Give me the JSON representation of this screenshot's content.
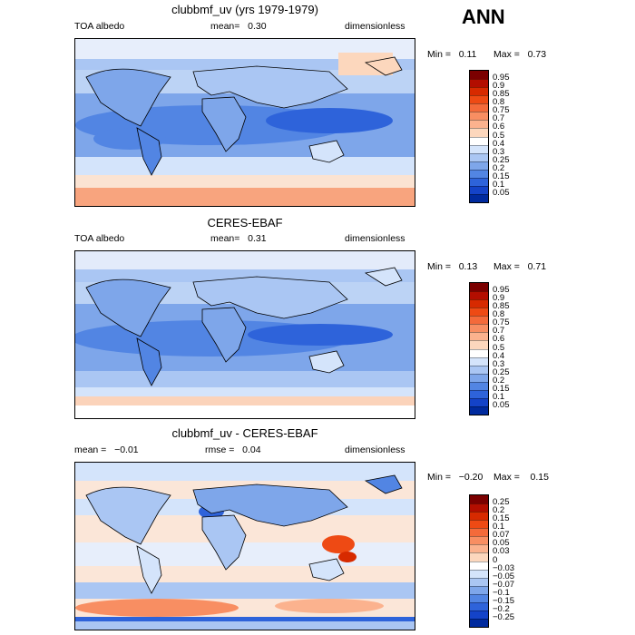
{
  "season": "ANN",
  "panels": [
    {
      "title": "clubbmf_uv (yrs 1979-1979)",
      "left_label": "TOA albedo",
      "mid_label": "mean=   0.30",
      "right_label": "dimensionless",
      "min_label": "Min =   0.11",
      "max_label": "Max =   0.73",
      "colorbar": {
        "ticks": [
          "0.95",
          "0.9",
          "0.85",
          "0.8",
          "0.75",
          "0.7",
          "0.6",
          "0.5",
          "0.4",
          "0.3",
          "0.25",
          "0.2",
          "0.15",
          "0.1",
          "0.05"
        ],
        "colors": [
          "#7b0000",
          "#b30e00",
          "#d72a00",
          "#ee4a14",
          "#f46a3a",
          "#f88e62",
          "#fbb28e",
          "#fcd7bd",
          "#ffffff",
          "#d4e4fb",
          "#aac6f3",
          "#7ea6ea",
          "#5285e3",
          "#2e63da",
          "#1443c8",
          "#002a9e"
        ]
      }
    },
    {
      "title": "CERES-EBAF",
      "left_label": "TOA albedo",
      "mid_label": "mean=   0.31",
      "right_label": "dimensionless",
      "min_label": "Min =   0.13",
      "max_label": "Max =   0.71",
      "colorbar": {
        "ticks": [
          "0.95",
          "0.9",
          "0.85",
          "0.8",
          "0.75",
          "0.7",
          "0.6",
          "0.5",
          "0.4",
          "0.3",
          "0.25",
          "0.2",
          "0.15",
          "0.1",
          "0.05"
        ],
        "colors": [
          "#7b0000",
          "#b30e00",
          "#d72a00",
          "#ee4a14",
          "#f46a3a",
          "#f88e62",
          "#fbb28e",
          "#fcd7bd",
          "#ffffff",
          "#d4e4fb",
          "#aac6f3",
          "#7ea6ea",
          "#5285e3",
          "#2e63da",
          "#1443c8",
          "#002a9e"
        ]
      }
    },
    {
      "title": "clubbmf_uv - CERES-EBAF",
      "left_label": "mean =   −0.01",
      "mid_label": "rmse =   0.04",
      "right_label": "dimensionless",
      "min_label": "Min =   −0.20",
      "max_label": "Max =    0.15",
      "colorbar": {
        "ticks": [
          "0.25",
          "0.2",
          "0.15",
          "0.1",
          "0.07",
          "0.05",
          "0.03",
          "0",
          "−0.03",
          "−0.05",
          "−0.07",
          "−0.1",
          "−0.15",
          "−0.2",
          "−0.25"
        ],
        "colors": [
          "#7b0000",
          "#b30e00",
          "#d72a00",
          "#ee4a14",
          "#f46a3a",
          "#f88e62",
          "#fbb28e",
          "#fcd7bd",
          "#ffffff",
          "#d4e4fb",
          "#aac6f3",
          "#7ea6ea",
          "#5285e3",
          "#2e63da",
          "#1443c8",
          "#002a9e"
        ]
      }
    }
  ]
}
